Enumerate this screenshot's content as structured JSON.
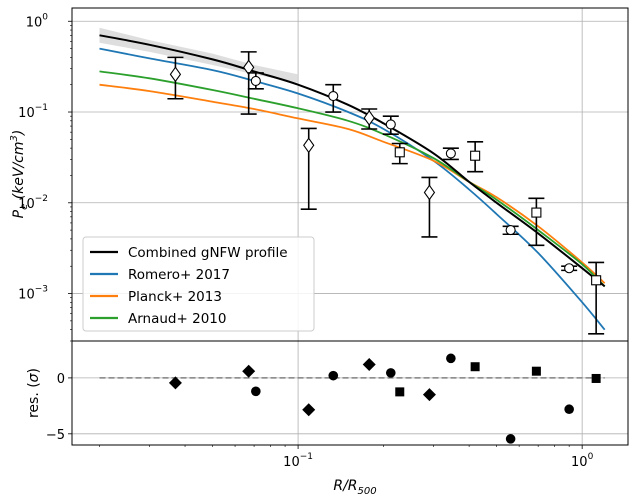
{
  "chart_data": [
    {
      "type": "line",
      "panel": "top",
      "xscale": "log",
      "yscale": "log",
      "xlim": [
        0.016,
        1.45
      ],
      "ylim": [
        0.0003,
        1.4
      ],
      "grid": true,
      "xticks": [
        0.1,
        1.0
      ],
      "xtick_labels": [
        "",
        ""
      ],
      "yticks": [
        0.001,
        0.01,
        0.1,
        1.0
      ],
      "ytick_labels": [
        {
          "base": "10",
          "exp": "−3"
        },
        {
          "base": "10",
          "exp": "−2"
        },
        {
          "base": "10",
          "exp": "−1"
        },
        {
          "base": "10",
          "exp": "0"
        }
      ],
      "ylabel": {
        "main": "P",
        "sub": "e",
        "paren_open": " (keV/cm",
        "sup": "3",
        "paren_close": ")"
      },
      "legend_position": "lower-left",
      "band": {
        "name": "uncertainty",
        "color": "#d3d3d3",
        "x": [
          0.02,
          0.03,
          0.05,
          0.07,
          0.1
        ],
        "upper": [
          0.85,
          0.62,
          0.44,
          0.33,
          0.26
        ],
        "lower": [
          0.58,
          0.46,
          0.33,
          0.26,
          0.21
        ]
      },
      "series": [
        {
          "name": "Combined gNFW profile",
          "color": "#000000",
          "x": [
            0.02,
            0.03,
            0.05,
            0.07,
            0.1,
            0.15,
            0.2,
            0.3,
            0.4,
            0.5,
            0.7,
            1.0,
            1.2
          ],
          "y": [
            0.7,
            0.55,
            0.38,
            0.28,
            0.2,
            0.12,
            0.075,
            0.035,
            0.017,
            0.01,
            0.0046,
            0.0019,
            0.0012
          ]
        },
        {
          "name": "Romero+ 2017",
          "color": "#1f77b4",
          "x": [
            0.02,
            0.03,
            0.05,
            0.07,
            0.1,
            0.15,
            0.2,
            0.3,
            0.4,
            0.5,
            0.7,
            1.0,
            1.2
          ],
          "y": [
            0.5,
            0.39,
            0.29,
            0.22,
            0.16,
            0.1,
            0.065,
            0.029,
            0.014,
            0.0075,
            0.0028,
            0.0008,
            0.0004
          ]
        },
        {
          "name": "Planck+ 2013",
          "color": "#ff7f0e",
          "x": [
            0.02,
            0.03,
            0.05,
            0.07,
            0.1,
            0.15,
            0.2,
            0.3,
            0.4,
            0.5,
            0.7,
            1.0,
            1.2
          ],
          "y": [
            0.2,
            0.17,
            0.13,
            0.108,
            0.085,
            0.065,
            0.047,
            0.029,
            0.017,
            0.0115,
            0.0055,
            0.0022,
            0.0013
          ]
        },
        {
          "name": "Arnaud+ 2010",
          "color": "#2ca02c",
          "x": [
            0.02,
            0.03,
            0.05,
            0.07,
            0.1,
            0.15,
            0.2,
            0.3,
            0.4,
            0.5,
            0.7,
            1.0,
            1.2
          ],
          "y": [
            0.28,
            0.235,
            0.175,
            0.14,
            0.11,
            0.08,
            0.057,
            0.031,
            0.017,
            0.0108,
            0.005,
            0.0021,
            0.0012
          ]
        }
      ],
      "points": [
        {
          "marker": "diamond",
          "x": 0.037,
          "y": 0.26,
          "ylow": 0.14,
          "yhigh": 0.4
        },
        {
          "marker": "diamond",
          "x": 0.067,
          "y": 0.31,
          "ylow": 0.095,
          "yhigh": 0.46
        },
        {
          "marker": "diamond",
          "x": 0.109,
          "y": 0.043,
          "ylow": 0.0085,
          "yhigh": 0.066
        },
        {
          "marker": "diamond",
          "x": 0.178,
          "y": 0.086,
          "ylow": 0.065,
          "yhigh": 0.108
        },
        {
          "marker": "diamond",
          "x": 0.29,
          "y": 0.013,
          "ylow": 0.0042,
          "yhigh": 0.019
        },
        {
          "marker": "circle",
          "x": 0.071,
          "y": 0.22,
          "ylow": 0.18,
          "yhigh": 0.27
        },
        {
          "marker": "circle",
          "x": 0.133,
          "y": 0.15,
          "ylow": 0.1,
          "yhigh": 0.2
        },
        {
          "marker": "circle",
          "x": 0.212,
          "y": 0.073,
          "ylow": 0.057,
          "yhigh": 0.09
        },
        {
          "marker": "circle",
          "x": 0.345,
          "y": 0.035,
          "ylow": 0.03,
          "yhigh": 0.04
        },
        {
          "marker": "circle",
          "x": 0.56,
          "y": 0.005,
          "ylow": 0.0045,
          "yhigh": 0.0055
        },
        {
          "marker": "circle",
          "x": 0.9,
          "y": 0.0019,
          "ylow": 0.0018,
          "yhigh": 0.002
        },
        {
          "marker": "square",
          "x": 0.228,
          "y": 0.036,
          "ylow": 0.027,
          "yhigh": 0.045
        },
        {
          "marker": "square",
          "x": 0.42,
          "y": 0.033,
          "ylow": 0.022,
          "yhigh": 0.047
        },
        {
          "marker": "square",
          "x": 0.69,
          "y": 0.0078,
          "ylow": 0.0034,
          "yhigh": 0.0112
        },
        {
          "marker": "square",
          "x": 1.12,
          "y": 0.0014,
          "ylow": 0.00036,
          "yhigh": 0.0022
        }
      ]
    },
    {
      "type": "scatter",
      "panel": "bottom",
      "xscale": "log",
      "xlim": [
        0.016,
        1.45
      ],
      "ylim": [
        -6,
        3.3
      ],
      "grid": true,
      "xticks": [
        0.1,
        1.0
      ],
      "xtick_labels": [
        {
          "base": "10",
          "exp": "−1"
        },
        {
          "base": "10",
          "exp": "0"
        }
      ],
      "yticks": [
        -5,
        0
      ],
      "ytick_labels": [
        "−5",
        "0"
      ],
      "ylabel": {
        "pre": "res. (",
        "sym": "σ",
        "post": ")"
      },
      "xlabel": {
        "main": "R/R",
        "sub": "500"
      },
      "zero_line": {
        "y": 0,
        "x_from": 0.02,
        "x_to": 1.2,
        "color": "#808080"
      },
      "points": [
        {
          "marker": "diamond",
          "x": 0.037,
          "y": -0.45
        },
        {
          "marker": "diamond",
          "x": 0.067,
          "y": 0.6
        },
        {
          "marker": "diamond",
          "x": 0.109,
          "y": -2.85
        },
        {
          "marker": "diamond",
          "x": 0.178,
          "y": 1.2
        },
        {
          "marker": "diamond",
          "x": 0.29,
          "y": -1.5
        },
        {
          "marker": "circle",
          "x": 0.071,
          "y": -1.2
        },
        {
          "marker": "circle",
          "x": 0.133,
          "y": 0.2
        },
        {
          "marker": "circle",
          "x": 0.212,
          "y": 0.45
        },
        {
          "marker": "circle",
          "x": 0.345,
          "y": 1.75
        },
        {
          "marker": "circle",
          "x": 0.56,
          "y": -5.45
        },
        {
          "marker": "circle",
          "x": 0.9,
          "y": -2.8
        },
        {
          "marker": "square",
          "x": 0.228,
          "y": -1.25
        },
        {
          "marker": "square",
          "x": 0.42,
          "y": 1.0
        },
        {
          "marker": "square",
          "x": 0.69,
          "y": 0.6
        },
        {
          "marker": "square",
          "x": 1.12,
          "y": -0.05
        }
      ]
    }
  ]
}
